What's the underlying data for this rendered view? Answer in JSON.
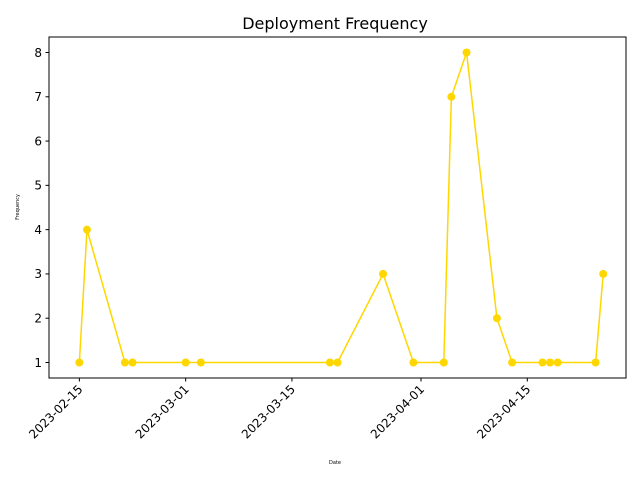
{
  "chart_data": {
    "type": "line",
    "title": "Deployment Frequency",
    "xlabel": "Date",
    "ylabel": "Frequency",
    "line_color": "#FFD700",
    "x_ticks": [
      "2023-02-15",
      "2023-03-01",
      "2023-03-15",
      "2023-04-01",
      "2023-04-15"
    ],
    "y_ticks": [
      1,
      2,
      3,
      4,
      5,
      6,
      7,
      8
    ],
    "ylim": [
      0.65,
      8.35
    ],
    "xlim": [
      "2023-02-11",
      "2023-04-28"
    ],
    "grid": false,
    "series": [
      {
        "x": [
          "2023-02-15",
          "2023-02-16",
          "2023-02-21",
          "2023-02-22",
          "2023-03-01",
          "2023-03-03",
          "2023-03-20",
          "2023-03-21",
          "2023-03-27",
          "2023-03-31",
          "2023-04-04",
          "2023-04-05",
          "2023-04-07",
          "2023-04-11",
          "2023-04-13",
          "2023-04-17",
          "2023-04-18",
          "2023-04-19",
          "2023-04-24",
          "2023-04-25"
        ],
        "values": [
          1,
          4,
          1,
          1,
          1,
          1,
          1,
          1,
          3,
          1,
          1,
          7,
          8,
          2,
          1,
          1,
          1,
          1,
          1,
          3
        ]
      }
    ]
  }
}
